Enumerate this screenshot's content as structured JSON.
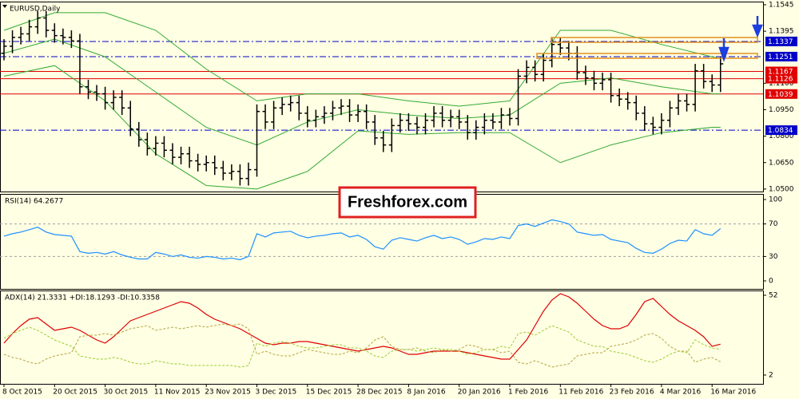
{
  "chart_data": [
    {
      "type": "ohlc",
      "title": "EURUSD,Daily",
      "annotation": "Freshforex.com",
      "color": "#000000",
      "ylim": [
        1.0486,
        1.1563
      ],
      "yticks": [
        1.1545,
        1.1395,
        {
          "value": 1.11,
          "label": "1.1100"
        },
        {
          "value": 1.095,
          "label": "1.0950"
        },
        {
          "value": 1.08,
          "label": "1.0800"
        },
        {
          "value": 1.065,
          "label": "1.0650"
        },
        {
          "value": 1.05,
          "label": "1.0500"
        }
      ],
      "levels": [
        {
          "value": 1.1337,
          "color": "#0000c8",
          "style": "dash-dot"
        },
        {
          "value": 1.1251,
          "color": "#0000c8",
          "style": "dash-dot"
        },
        {
          "value": 1.1167,
          "color": "#e00000",
          "style": "solid"
        },
        {
          "value": 1.1126,
          "color": "#e00000",
          "style": "solid"
        },
        {
          "value": 1.1039,
          "color": "#e00000",
          "style": "solid"
        },
        {
          "value": 1.0834,
          "color": "#0000c8",
          "style": "dash-dot"
        }
      ],
      "categories": [
        "8 Oct 2015",
        null,
        null,
        null,
        null,
        null,
        "20 Oct 2015",
        null,
        null,
        null,
        null,
        null,
        "30 Oct 2015",
        null,
        null,
        null,
        null,
        null,
        "11 Nov 2015",
        null,
        null,
        null,
        null,
        null,
        "23 Nov 2015",
        null,
        null,
        null,
        null,
        null,
        "3 Dec 2015",
        null,
        null,
        null,
        null,
        null,
        "15 Dec 2015",
        null,
        null,
        null,
        null,
        null,
        "28 Dec 2015",
        null,
        null,
        null,
        null,
        null,
        "8 Jan 2016",
        null,
        null,
        null,
        null,
        null,
        "20 Jan 2016",
        null,
        null,
        null,
        null,
        null,
        "1 Feb 2016",
        null,
        null,
        null,
        null,
        null,
        "11 Feb 2016",
        null,
        null,
        null,
        null,
        null,
        "23 Feb 2016",
        null,
        null,
        null,
        null,
        null,
        "4 Mar 2016",
        null,
        null,
        null,
        null,
        null,
        "16 Mar 2016",
        null
      ],
      "open": [
        1.127,
        1.131,
        1.136,
        1.138,
        1.142,
        1.147,
        1.14,
        1.137,
        1.136,
        1.134,
        1.108,
        1.105,
        1.104,
        1.099,
        1.102,
        1.096,
        1.084,
        1.078,
        1.073,
        1.076,
        1.072,
        1.068,
        1.07,
        1.066,
        1.064,
        1.065,
        1.062,
        1.059,
        1.06,
        1.056,
        1.061,
        1.094,
        1.088,
        1.096,
        1.098,
        1.099,
        1.093,
        1.089,
        1.091,
        1.093,
        1.096,
        1.097,
        1.092,
        1.094,
        1.088,
        1.079,
        1.075,
        1.086,
        1.089,
        1.087,
        1.085,
        1.089,
        1.093,
        1.089,
        1.091,
        1.088,
        1.082,
        1.085,
        1.089,
        1.088,
        1.092,
        1.09,
        1.114,
        1.119,
        1.115,
        1.123,
        1.132,
        1.13,
        1.127,
        1.116,
        1.113,
        1.11,
        1.112,
        1.103,
        1.101,
        1.099,
        1.093,
        1.087,
        1.085,
        1.089,
        1.096,
        1.1,
        1.098,
        1.117,
        1.111,
        1.109
      ],
      "high": [
        1.135,
        1.14,
        1.142,
        1.146,
        1.151,
        1.151,
        1.144,
        1.141,
        1.14,
        1.138,
        1.112,
        1.109,
        1.108,
        1.106,
        1.106,
        1.1,
        1.088,
        1.082,
        1.08,
        1.08,
        1.076,
        1.074,
        1.074,
        1.07,
        1.069,
        1.069,
        1.066,
        1.064,
        1.064,
        1.065,
        1.098,
        1.098,
        1.1,
        1.102,
        1.103,
        1.103,
        1.097,
        1.095,
        1.097,
        1.1,
        1.101,
        1.101,
        1.098,
        1.098,
        1.092,
        1.083,
        1.09,
        1.093,
        1.093,
        1.091,
        1.093,
        1.097,
        1.097,
        1.095,
        1.095,
        1.092,
        1.089,
        1.093,
        1.093,
        1.096,
        1.096,
        1.118,
        1.123,
        1.123,
        1.127,
        1.136,
        1.136,
        1.134,
        1.131,
        1.12,
        1.117,
        1.116,
        1.116,
        1.107,
        1.105,
        1.103,
        1.097,
        1.091,
        1.093,
        1.1,
        1.104,
        1.104,
        1.121,
        1.121,
        1.115,
        1.125
      ],
      "low": [
        1.123,
        1.127,
        1.132,
        1.134,
        1.138,
        1.136,
        1.133,
        1.132,
        1.13,
        1.104,
        1.101,
        1.1,
        1.095,
        1.095,
        1.092,
        1.08,
        1.074,
        1.069,
        1.069,
        1.068,
        1.064,
        1.064,
        1.062,
        1.06,
        1.06,
        1.058,
        1.055,
        1.055,
        1.052,
        1.052,
        1.057,
        1.084,
        1.084,
        1.092,
        1.094,
        1.089,
        1.085,
        1.085,
        1.087,
        1.089,
        1.092,
        1.088,
        1.088,
        1.084,
        1.075,
        1.071,
        1.071,
        1.082,
        1.083,
        1.081,
        1.081,
        1.085,
        1.085,
        1.085,
        1.084,
        1.078,
        1.078,
        1.081,
        1.084,
        1.084,
        1.086,
        1.086,
        1.11,
        1.111,
        1.111,
        1.119,
        1.126,
        1.123,
        1.112,
        1.109,
        1.106,
        1.106,
        1.099,
        1.097,
        1.095,
        1.089,
        1.083,
        1.081,
        1.081,
        1.085,
        1.092,
        1.094,
        1.094,
        1.107,
        1.105,
        1.105
      ],
      "close": [
        1.131,
        1.136,
        1.138,
        1.142,
        1.147,
        1.14,
        1.137,
        1.136,
        1.134,
        1.108,
        1.105,
        1.104,
        1.099,
        1.102,
        1.096,
        1.084,
        1.078,
        1.073,
        1.076,
        1.072,
        1.068,
        1.07,
        1.066,
        1.064,
        1.065,
        1.062,
        1.059,
        1.06,
        1.056,
        1.061,
        1.094,
        1.088,
        1.096,
        1.098,
        1.099,
        1.093,
        1.089,
        1.091,
        1.093,
        1.096,
        1.097,
        1.092,
        1.094,
        1.088,
        1.079,
        1.075,
        1.086,
        1.089,
        1.087,
        1.085,
        1.089,
        1.093,
        1.089,
        1.091,
        1.088,
        1.082,
        1.085,
        1.089,
        1.088,
        1.092,
        1.09,
        1.114,
        1.119,
        1.115,
        1.123,
        1.132,
        1.13,
        1.127,
        1.116,
        1.113,
        1.11,
        1.112,
        1.103,
        1.101,
        1.099,
        1.093,
        1.087,
        1.085,
        1.089,
        1.096,
        1.1,
        1.098,
        1.117,
        1.111,
        1.109,
        1.121
      ],
      "overlays": [
        {
          "color": "#33aa33",
          "x": [
            0,
            6,
            12,
            18,
            24,
            30,
            36,
            42,
            48,
            54,
            60,
            66,
            72,
            78,
            84,
            85
          ],
          "values": [
            1.14,
            1.15,
            1.15,
            1.14,
            1.118,
            1.1,
            1.104,
            1.104,
            1.1,
            1.097,
            1.1,
            1.14,
            1.14,
            1.132,
            1.125,
            1.124
          ]
        },
        {
          "color": "#33aa33",
          "x": [
            0,
            6,
            12,
            18,
            24,
            30,
            36,
            42,
            48,
            54,
            60,
            66,
            72,
            78,
            84,
            85
          ],
          "values": [
            1.127,
            1.135,
            1.125,
            1.105,
            1.085,
            1.075,
            1.088,
            1.095,
            1.092,
            1.09,
            1.092,
            1.11,
            1.113,
            1.108,
            1.104,
            1.104
          ]
        },
        {
          "color": "#33aa33",
          "x": [
            0,
            6,
            12,
            18,
            24,
            30,
            36,
            42,
            48,
            54,
            60,
            66,
            72,
            78,
            84,
            85
          ],
          "values": [
            1.114,
            1.12,
            1.1,
            1.07,
            1.052,
            1.05,
            1.06,
            1.083,
            1.081,
            1.082,
            1.082,
            1.065,
            1.075,
            1.082,
            1.085,
            1.085
          ]
        }
      ]
    },
    {
      "type": "line",
      "title": "RSI(14) 64.2677",
      "ylim": [
        -9.8,
        106.9
      ],
      "yticks": [
        100,
        70,
        30,
        0
      ],
      "levels": [
        70,
        30
      ],
      "series": [
        {
          "color": "#1e90ff",
          "values": [
            55,
            58,
            60,
            63,
            66,
            60,
            57,
            56,
            55,
            36,
            34,
            35,
            33,
            36,
            32,
            29,
            27,
            27,
            35,
            33,
            30,
            32,
            29,
            28,
            30,
            29,
            27,
            28,
            26,
            30,
            58,
            54,
            59,
            60,
            61,
            56,
            53,
            55,
            56,
            58,
            59,
            54,
            56,
            51,
            42,
            39,
            50,
            53,
            51,
            49,
            53,
            56,
            52,
            54,
            51,
            45,
            48,
            52,
            51,
            54,
            52,
            68,
            70,
            67,
            71,
            75,
            73,
            70,
            60,
            58,
            56,
            57,
            51,
            49,
            47,
            40,
            35,
            34,
            39,
            46,
            50,
            49,
            63,
            58,
            56,
            64.2677
          ]
        }
      ]
    },
    {
      "type": "line",
      "title": "ADX(14) 21.3331 +DI:18.1293 -DI:10.3358",
      "ylim": [
        -3.5,
        55
      ],
      "yticks": [
        52,
        2
      ],
      "series": [
        {
          "color": "#dd0000",
          "dash": false,
          "values": [
            22,
            28,
            33,
            37,
            38,
            34,
            30,
            31,
            32,
            30,
            27,
            24,
            22,
            26,
            31,
            36,
            38,
            40,
            42,
            44,
            46,
            48,
            47,
            44,
            40,
            37,
            35,
            33,
            31,
            28,
            25,
            22,
            21,
            22,
            22,
            23,
            23,
            22,
            21,
            20,
            19,
            18,
            17,
            18,
            19,
            20,
            19,
            17,
            15,
            15,
            16,
            17,
            17,
            17,
            17,
            16,
            15,
            14,
            13,
            12,
            12,
            18,
            24,
            33,
            42,
            49,
            53,
            51,
            47,
            42,
            37,
            33,
            31,
            31,
            33,
            40,
            48,
            50,
            45,
            40,
            36,
            33,
            30,
            26,
            20,
            21.3331
          ]
        },
        {
          "color": "#9acd32",
          "dash": true,
          "values": [
            25,
            28,
            30,
            32,
            30,
            27,
            24,
            22,
            20,
            14,
            13,
            12,
            12,
            13,
            12,
            10,
            9,
            9,
            11,
            10,
            9,
            9,
            8,
            8,
            8,
            8,
            8,
            8,
            7,
            8,
            22,
            20,
            22,
            23,
            22,
            20,
            19,
            19,
            20,
            21,
            21,
            19,
            19,
            17,
            14,
            13,
            17,
            18,
            18,
            17,
            18,
            19,
            18,
            18,
            17,
            15,
            16,
            18,
            18,
            20,
            19,
            28,
            29,
            27,
            30,
            33,
            31,
            29,
            24,
            22,
            20,
            20,
            17,
            16,
            15,
            13,
            11,
            10,
            12,
            15,
            17,
            16,
            24,
            21,
            19,
            18.1293
          ]
        },
        {
          "color": "#b5a642",
          "dash": true,
          "values": [
            15,
            13,
            12,
            10,
            9,
            12,
            14,
            15,
            16,
            26,
            27,
            27,
            28,
            27,
            29,
            31,
            32,
            33,
            30,
            31,
            32,
            31,
            32,
            33,
            32,
            33,
            34,
            33,
            34,
            31,
            15,
            17,
            15,
            14,
            14,
            16,
            18,
            17,
            16,
            15,
            15,
            17,
            16,
            19,
            24,
            26,
            20,
            18,
            18,
            19,
            17,
            16,
            18,
            17,
            18,
            21,
            20,
            18,
            18,
            16,
            17,
            10,
            9,
            11,
            9,
            7,
            8,
            9,
            14,
            15,
            16,
            16,
            20,
            21,
            22,
            24,
            27,
            28,
            25,
            20,
            17,
            17,
            10,
            12,
            13,
            10.3358
          ]
        }
      ]
    }
  ]
}
